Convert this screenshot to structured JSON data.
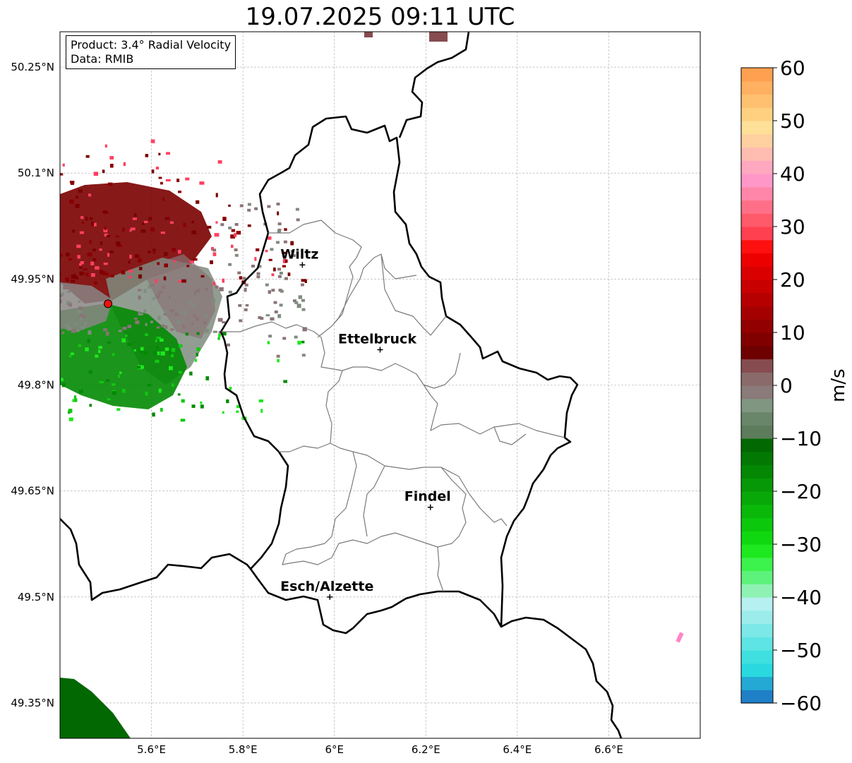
{
  "title": "19.07.2025 09:11 UTC",
  "info": {
    "product_line": "Product: 3.4° Radial Velocity",
    "data_line": "Data: RMIB"
  },
  "map": {
    "extent": {
      "lon_min": 5.4,
      "lon_max": 6.8,
      "lat_min": 49.3,
      "lat_max": 50.3
    },
    "lon_ticks": [
      {
        "value": 5.6,
        "label": "5.6°E"
      },
      {
        "value": 5.8,
        "label": "5.8°E"
      },
      {
        "value": 6.0,
        "label": "6°E"
      },
      {
        "value": 6.2,
        "label": "6.2°E"
      },
      {
        "value": 6.4,
        "label": "6.4°E"
      },
      {
        "value": 6.6,
        "label": "6.6°E"
      }
    ],
    "lat_ticks": [
      {
        "value": 50.25,
        "label": "50.25°N"
      },
      {
        "value": 50.1,
        "label": "50.1°N"
      },
      {
        "value": 49.95,
        "label": "49.95°N"
      },
      {
        "value": 49.8,
        "label": "49.8°N"
      },
      {
        "value": 49.65,
        "label": "49.65°N"
      },
      {
        "value": 49.5,
        "label": "49.5°N"
      },
      {
        "value": 49.35,
        "label": "49.35°N"
      }
    ],
    "gridlines": true,
    "cities": [
      {
        "name": "Wiltz",
        "lon": 5.93,
        "lat": 49.97
      },
      {
        "name": "Ettelbruck",
        "lon": 6.1,
        "lat": 49.85
      },
      {
        "name": "Findel",
        "lon": 6.21,
        "lat": 49.627
      },
      {
        "name": "Esch/Alzette",
        "lon": 5.99,
        "lat": 49.5
      }
    ],
    "radar_site": {
      "lon": 5.505,
      "lat": 49.915
    }
  },
  "colorbar": {
    "label": "m/s",
    "vmin": -60,
    "vmax": 60,
    "ticks": [
      {
        "value": 60,
        "label": "60"
      },
      {
        "value": 50,
        "label": "50"
      },
      {
        "value": 40,
        "label": "40"
      },
      {
        "value": 30,
        "label": "30"
      },
      {
        "value": 20,
        "label": "20"
      },
      {
        "value": 10,
        "label": "10"
      },
      {
        "value": 0,
        "label": "0"
      },
      {
        "value": -10,
        "label": "−10"
      },
      {
        "value": -20,
        "label": "−20"
      },
      {
        "value": -30,
        "label": "−30"
      },
      {
        "value": -40,
        "label": "−40"
      },
      {
        "value": -50,
        "label": "−50"
      },
      {
        "value": -60,
        "label": "−60"
      }
    ],
    "colors": [
      "#1f7fc7",
      "#24a9d4",
      "#2ad9e0",
      "#40e0e0",
      "#5ee4e4",
      "#7de8e8",
      "#9cecec",
      "#b6f0f0",
      "#8ff2b4",
      "#5df27c",
      "#3cf24c",
      "#1ee81e",
      "#10d810",
      "#0cc80c",
      "#0ab80a",
      "#08a808",
      "#069806",
      "#048804",
      "#037803",
      "#026802",
      "#5c7c5c",
      "#6a866a",
      "#809680",
      "#8a7a7a",
      "#8a6a6a",
      "#864c50",
      "#6e0000",
      "#800000",
      "#920000",
      "#a40000",
      "#b60000",
      "#c80000",
      "#da0000",
      "#ec0000",
      "#ff1010",
      "#ff4050",
      "#ff5a6a",
      "#ff7088",
      "#ff86a8",
      "#ff98c8",
      "#ffa8c0",
      "#ffbcb0",
      "#ffd0a0",
      "#ffe098",
      "#ffd080",
      "#ffc070",
      "#ffb060",
      "#ffa050"
    ]
  }
}
